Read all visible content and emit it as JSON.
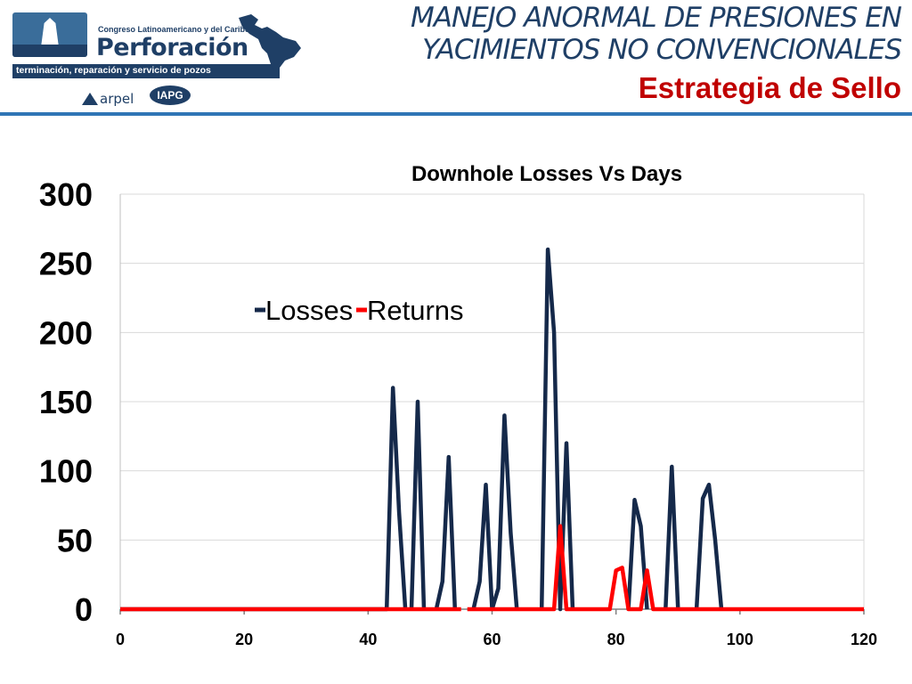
{
  "header": {
    "logo": {
      "congress_line": "Congreso Latinoamericano y del Caribe de",
      "brand": "Perforación",
      "tagline": "terminación, reparación y servicio de pozos",
      "partner1": "arpel",
      "partner2": "IAPG"
    },
    "title_line1": "MANEJO ANORMAL DE PRESIONES EN",
    "title_line2": "YACIMIENTOS NO CONVENCIONALES",
    "subtitle": "Estrategia de Sello"
  },
  "colors": {
    "brand_navy": "#1f3f66",
    "subtitle_red": "#c00000",
    "rule_blue": "#2f75b5",
    "losses": "#15294a",
    "returns": "#ff0000"
  },
  "chart_data": {
    "type": "line",
    "title": "Downhole Losses Vs Days",
    "xlabel": "",
    "ylabel": "",
    "xlim": [
      0,
      120
    ],
    "ylim": [
      0,
      300
    ],
    "x_ticks": [
      0,
      20,
      40,
      60,
      80,
      100,
      120
    ],
    "y_ticks": [
      0,
      50,
      100,
      150,
      200,
      250,
      300
    ],
    "grid": "horizontal",
    "legend": "top-left inside plot",
    "series": [
      {
        "name": "Losses",
        "color": "#15294a",
        "segments": [
          [
            [
              0,
              0
            ],
            [
              43,
              0
            ],
            [
              44,
              160
            ],
            [
              45,
              70
            ],
            [
              46,
              0
            ]
          ],
          [
            [
              47,
              0
            ],
            [
              48,
              150
            ],
            [
              49,
              0
            ]
          ],
          [
            [
              51,
              0
            ],
            [
              52,
              20
            ],
            [
              53,
              110
            ],
            [
              54,
              0
            ]
          ],
          [
            [
              57,
              0
            ],
            [
              58,
              20
            ],
            [
              59,
              90
            ],
            [
              60,
              0
            ],
            [
              61,
              15
            ],
            [
              62,
              140
            ],
            [
              63,
              55
            ],
            [
              64,
              0
            ]
          ],
          [
            [
              68,
              0
            ],
            [
              69,
              260
            ],
            [
              70,
              200
            ],
            [
              71,
              0
            ],
            [
              72,
              120
            ],
            [
              73,
              0
            ]
          ],
          [
            [
              82,
              0
            ],
            [
              83,
              79
            ],
            [
              84,
              60
            ],
            [
              85,
              0
            ]
          ],
          [
            [
              88,
              0
            ],
            [
              89,
              103
            ],
            [
              90,
              0
            ]
          ],
          [
            [
              93,
              0
            ],
            [
              94,
              80
            ],
            [
              95,
              90
            ],
            [
              96,
              50
            ],
            [
              97,
              0
            ]
          ]
        ]
      },
      {
        "name": "Returns",
        "color": "#ff0000",
        "segments": [
          [
            [
              0,
              0
            ],
            [
              55,
              0
            ]
          ],
          [
            [
              56,
              0
            ],
            [
              70,
              0
            ],
            [
              71,
              60
            ],
            [
              72,
              0
            ],
            [
              79,
              0
            ],
            [
              80,
              28
            ],
            [
              81,
              30
            ],
            [
              82,
              0
            ],
            [
              84,
              0
            ],
            [
              85,
              28
            ],
            [
              86,
              0
            ],
            [
              120,
              0
            ]
          ]
        ]
      }
    ]
  }
}
